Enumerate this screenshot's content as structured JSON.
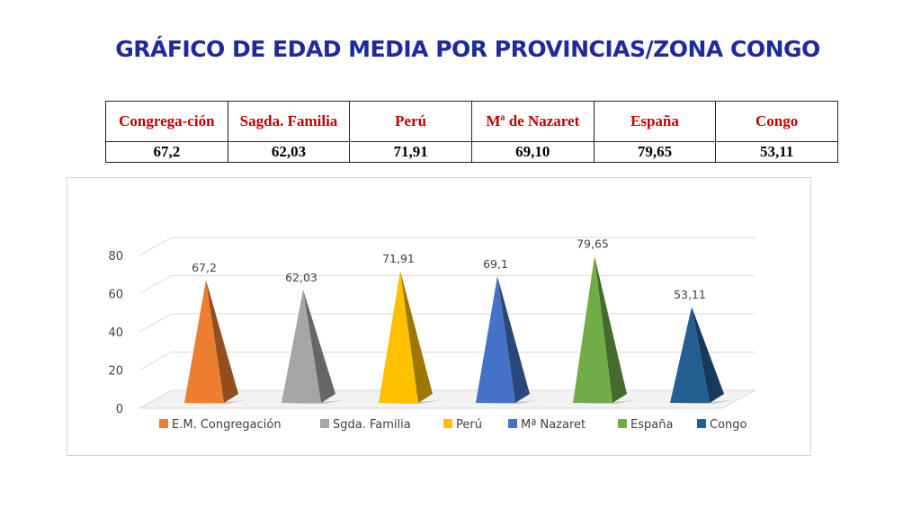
{
  "title": "GRÁFICO DE EDAD MEDIA POR PROVINCIAS/ZONA CONGO",
  "table": {
    "headers": [
      "Congrega-ción",
      "Sagda. Familia",
      "Perú",
      "Mª de Nazaret",
      "España",
      "Congo"
    ],
    "values": [
      "67,2",
      "62,03",
      "71,91",
      "69,10",
      "79,65",
      "53,11"
    ]
  },
  "chart_data": {
    "type": "bar",
    "bar_shape": "pyramid-3d",
    "title": "",
    "xlabel": "",
    "ylabel": "",
    "ylim": [
      0,
      80
    ],
    "yticks": [
      "0",
      "20",
      "40",
      "60",
      "80"
    ],
    "grid": true,
    "legend_position": "bottom",
    "series": [
      {
        "name": "E.M. Congregación",
        "value": 67.2,
        "label": "67,2",
        "color": "#ed7d31"
      },
      {
        "name": "Sgda. Familia",
        "value": 62.03,
        "label": "62,03",
        "color": "#a5a5a5"
      },
      {
        "name": "Perú",
        "value": 71.91,
        "label": "71,91",
        "color": "#ffc000"
      },
      {
        "name": "Mª Nazaret",
        "value": 69.1,
        "label": "69,1",
        "color": "#4472c4"
      },
      {
        "name": "España",
        "value": 79.65,
        "label": "79,65",
        "color": "#70ad47"
      },
      {
        "name": "Congo",
        "value": 53.11,
        "label": "53,11",
        "color": "#255e91"
      }
    ]
  }
}
